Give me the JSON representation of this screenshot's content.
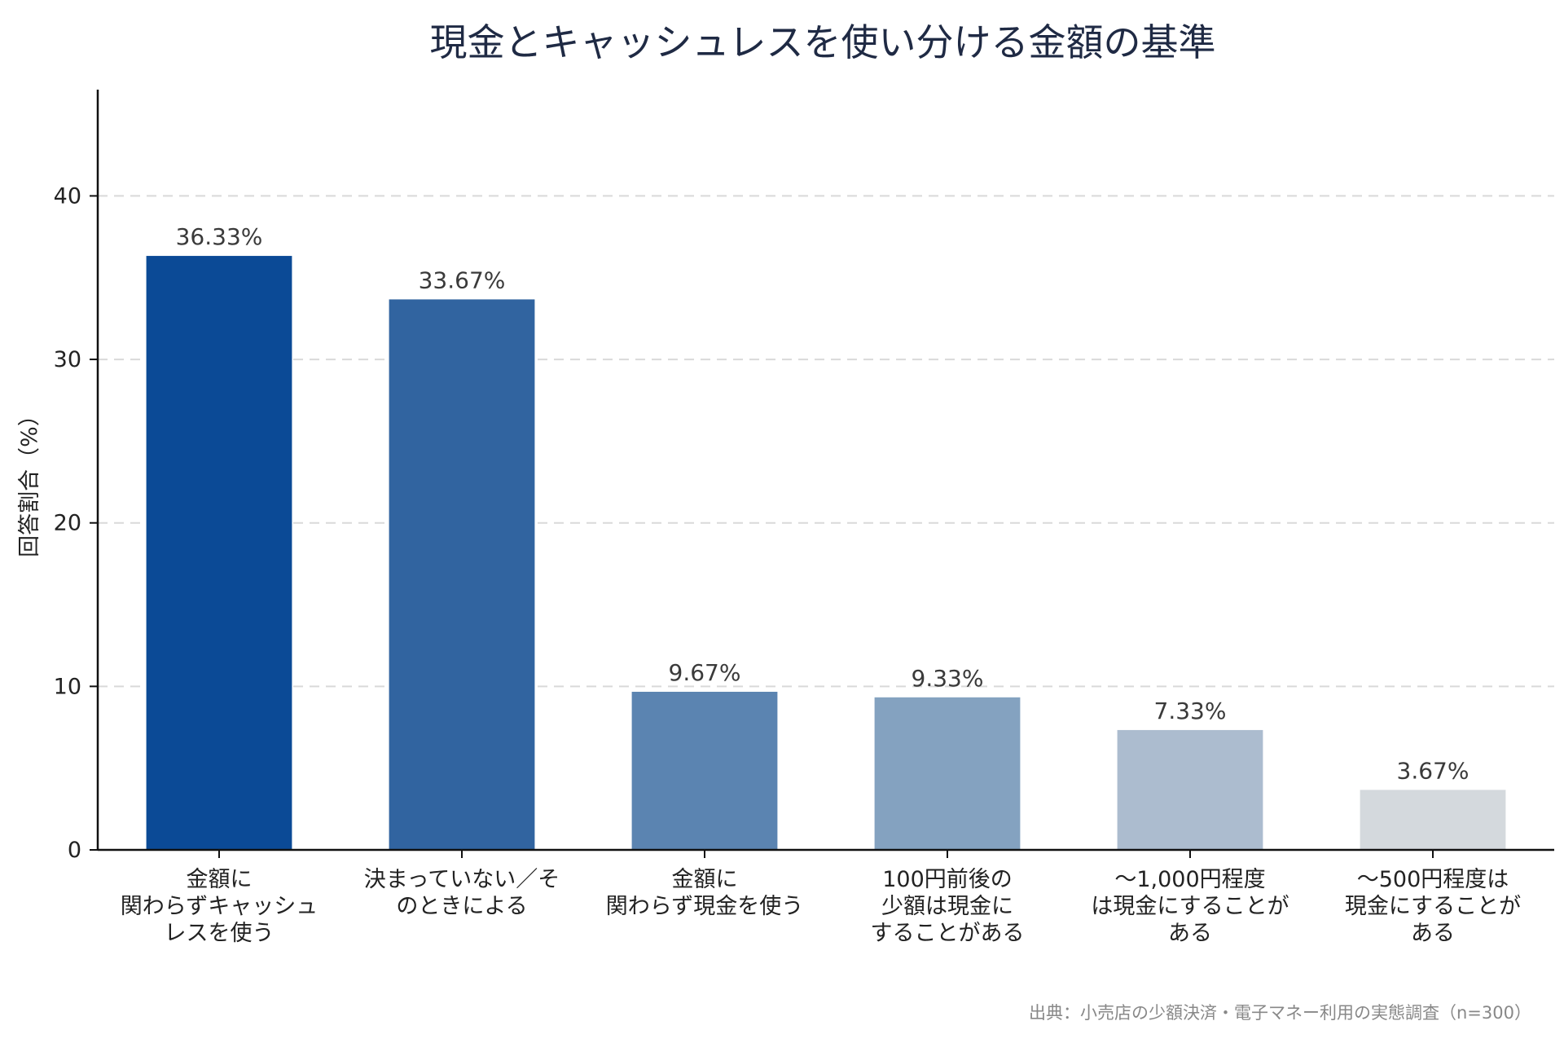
{
  "chart_data": {
    "type": "bar",
    "title": "現金とキャッシュレスを使い分ける金額の基準",
    "ylabel": "回答割合（%）",
    "xlabel": "",
    "ylim": [
      0,
      46.5
    ],
    "yticks": [
      0,
      10,
      20,
      30,
      40
    ],
    "grid": "horizontal-dashed",
    "categories": [
      [
        "金額に",
        "関わらずキャッシュ",
        "レスを使う"
      ],
      [
        "決まっていない／そ",
        "のときによる"
      ],
      [
        "金額に",
        "関わらず現金を使う"
      ],
      [
        "100円前後の",
        "少額は現金に",
        "することがある"
      ],
      [
        "〜1,000円程度",
        "は現金にすることが",
        "ある"
      ],
      [
        "〜500円程度は",
        "現金にすることが",
        "ある"
      ]
    ],
    "values": [
      36.33,
      33.67,
      9.67,
      9.33,
      7.33,
      3.67
    ],
    "value_labels": [
      "36.33%",
      "33.67%",
      "9.67%",
      "9.33%",
      "7.33%",
      "3.67%"
    ],
    "colors": [
      "#0b4a96",
      "#3164a0",
      "#5b84b1",
      "#84a2c0",
      "#acbccf",
      "#d4d9dd"
    ]
  },
  "source": "出典：小売店の少額決済・電子マネー利用の実態調査（n=300）"
}
